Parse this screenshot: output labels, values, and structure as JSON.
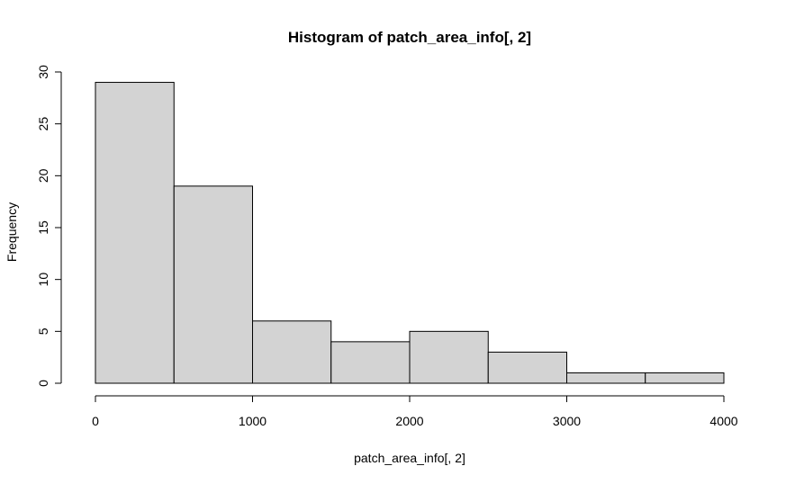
{
  "chart_data": {
    "type": "bar",
    "title": "Histogram of patch_area_info[, 2]",
    "xlabel": "patch_area_info[, 2]",
    "ylabel": "Frequency",
    "bins": [
      {
        "start": 0,
        "end": 500,
        "count": 29
      },
      {
        "start": 500,
        "end": 1000,
        "count": 19
      },
      {
        "start": 1000,
        "end": 1500,
        "count": 6
      },
      {
        "start": 1500,
        "end": 2000,
        "count": 4
      },
      {
        "start": 2000,
        "end": 2500,
        "count": 5
      },
      {
        "start": 2500,
        "end": 3000,
        "count": 3
      },
      {
        "start": 3000,
        "end": 3500,
        "count": 1
      },
      {
        "start": 3500,
        "end": 4000,
        "count": 1
      }
    ],
    "xlim": [
      0,
      4000
    ],
    "ylim": [
      0,
      30
    ],
    "x_ticks": [
      "0",
      "1000",
      "2000",
      "3000",
      "4000"
    ],
    "y_ticks": [
      "0",
      "5",
      "10",
      "15",
      "20",
      "25",
      "30"
    ],
    "grid": false,
    "bar_color": "#d3d3d3",
    "edge_color": "#000000"
  }
}
